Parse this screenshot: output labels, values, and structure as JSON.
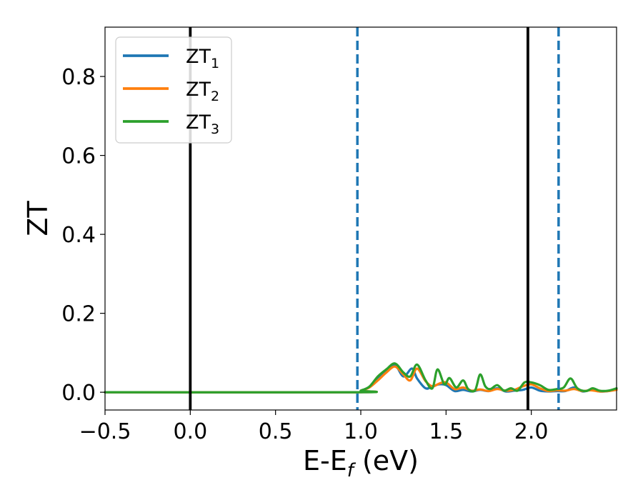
{
  "chart_data": {
    "type": "line",
    "xlabel": {
      "base": "E-E",
      "sub": "f",
      "unit": " (eV)"
    },
    "ylabel": "ZT",
    "xlim": [
      -0.5,
      2.5
    ],
    "ylim": [
      -0.045,
      0.925
    ],
    "xticks": [
      {
        "v": -0.5,
        "label": "−0.5"
      },
      {
        "v": 0.0,
        "label": "0.0"
      },
      {
        "v": 0.5,
        "label": "0.5"
      },
      {
        "v": 1.0,
        "label": "1.0"
      },
      {
        "v": 1.5,
        "label": "1.5"
      },
      {
        "v": 2.0,
        "label": "2.0"
      }
    ],
    "yticks": [
      {
        "v": 0.0,
        "label": "0.0"
      },
      {
        "v": 0.2,
        "label": "0.2"
      },
      {
        "v": 0.4,
        "label": "0.4"
      },
      {
        "v": 0.6,
        "label": "0.6"
      },
      {
        "v": 0.8,
        "label": "0.8"
      }
    ],
    "grid": false,
    "legend_position": "top-left",
    "vlines": [
      {
        "x": 0.0,
        "color": "#000000",
        "style": "solid"
      },
      {
        "x": 1.98,
        "color": "#000000",
        "style": "solid"
      },
      {
        "x": 0.98,
        "color": "#1f77b4",
        "style": "dashed"
      },
      {
        "x": 2.16,
        "color": "#1f77b4",
        "style": "dashed"
      }
    ],
    "series": [
      {
        "name": "ZT",
        "sub": "1",
        "color": "#1f77b4",
        "x": [
          -0.5,
          0.98,
          1.0,
          1.05,
          1.1,
          1.15,
          1.2,
          1.25,
          1.3,
          1.33,
          1.38,
          1.42,
          1.46,
          1.5,
          1.55,
          1.6,
          1.65,
          1.7,
          1.75,
          1.8,
          1.85,
          1.9,
          1.95,
          2.0,
          2.05,
          2.1,
          2.15,
          2.2,
          2.25,
          2.3,
          2.35,
          2.4,
          2.45,
          2.5
        ],
        "y": [
          0.0,
          0.0,
          0.004,
          0.013,
          0.035,
          0.055,
          0.07,
          0.04,
          0.06,
          0.035,
          0.01,
          0.015,
          0.02,
          0.018,
          0.003,
          0.006,
          0.002,
          0.006,
          0.003,
          0.01,
          0.002,
          0.004,
          0.006,
          0.012,
          0.004,
          0.002,
          0.003,
          0.003,
          0.012,
          0.002,
          0.006,
          0.002,
          0.003,
          0.007
        ]
      },
      {
        "name": "ZT",
        "sub": "2",
        "color": "#ff7f0e",
        "x": [
          -0.5,
          0.98,
          1.0,
          1.05,
          1.1,
          1.15,
          1.2,
          1.25,
          1.29,
          1.33,
          1.38,
          1.42,
          1.46,
          1.5,
          1.55,
          1.6,
          1.65,
          1.7,
          1.75,
          1.8,
          1.85,
          1.9,
          1.95,
          2.0,
          2.05,
          2.1,
          2.15,
          2.2,
          2.25,
          2.3,
          2.35,
          2.4,
          2.45,
          2.5
        ],
        "y": [
          0.0,
          0.0,
          0.004,
          0.012,
          0.03,
          0.05,
          0.065,
          0.045,
          0.03,
          0.06,
          0.028,
          0.015,
          0.022,
          0.025,
          0.008,
          0.012,
          0.004,
          0.007,
          0.003,
          0.008,
          0.004,
          0.006,
          0.015,
          0.02,
          0.01,
          0.003,
          0.005,
          0.004,
          0.008,
          0.003,
          0.005,
          0.002,
          0.003,
          0.006
        ]
      },
      {
        "name": "ZT",
        "sub": "3",
        "color": "#2ca02c",
        "x": [
          -0.5,
          0.98,
          1.0,
          1.05,
          1.1,
          1.15,
          1.2,
          1.25,
          1.29,
          1.33,
          1.38,
          1.42,
          1.45,
          1.49,
          1.52,
          1.56,
          1.6,
          1.63,
          1.67,
          1.7,
          1.73,
          1.76,
          1.8,
          1.84,
          1.88,
          1.92,
          1.96,
          2.0,
          2.05,
          2.1,
          2.15,
          2.19,
          2.23,
          2.27,
          2.32,
          2.36,
          2.4,
          2.45,
          2.5
        ],
        "y": [
          0.0,
          0.0,
          0.004,
          0.014,
          0.04,
          0.058,
          0.073,
          0.05,
          0.04,
          0.07,
          0.03,
          0.01,
          0.058,
          0.02,
          0.036,
          0.012,
          0.03,
          0.008,
          0.005,
          0.045,
          0.015,
          0.008,
          0.018,
          0.004,
          0.01,
          0.004,
          0.025,
          0.025,
          0.018,
          0.006,
          0.008,
          0.012,
          0.035,
          0.01,
          0.003,
          0.01,
          0.004,
          0.004,
          0.01
        ]
      }
    ]
  }
}
